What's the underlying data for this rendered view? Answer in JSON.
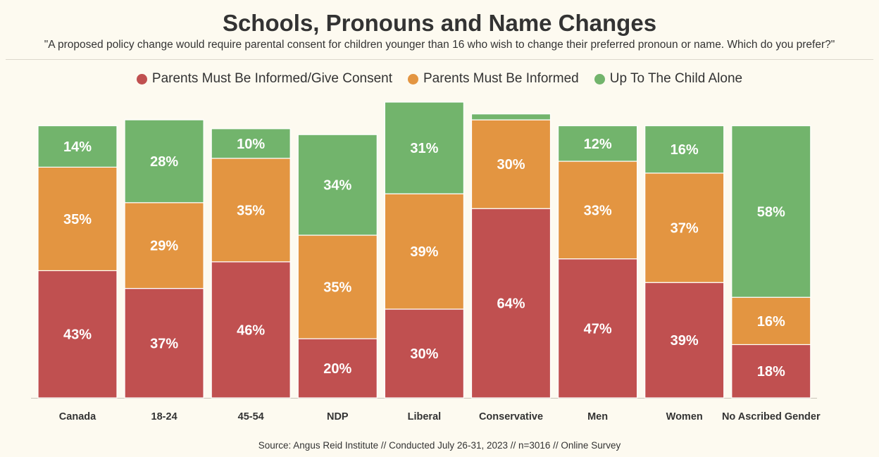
{
  "chart_data": {
    "type": "bar",
    "stacked": true,
    "title": "Schools, Pronouns and Name Changes",
    "subtitle": "\"A proposed policy change would require parental consent for children younger than 16 who wish to change their preferred pronoun or name. Which do you prefer?\"",
    "categories": [
      "Canada",
      "18-24",
      "45-54",
      "NDP",
      "Liberal",
      "Conservative",
      "Men",
      "Women",
      "No Ascribed Gender"
    ],
    "series": [
      {
        "name": "Parents Must Be Informed/Give Consent",
        "color": "#c05050",
        "values": [
          43,
          37,
          46,
          20,
          30,
          64,
          47,
          39,
          18
        ]
      },
      {
        "name": "Parents Must Be Informed",
        "color": "#e39541",
        "values": [
          35,
          29,
          35,
          35,
          39,
          30,
          33,
          37,
          16
        ]
      },
      {
        "name": "Up To The Child Alone",
        "color": "#72b46c",
        "values": [
          14,
          28,
          10,
          34,
          31,
          2,
          12,
          16,
          58
        ]
      }
    ],
    "value_labels": [
      [
        "43%",
        "37%",
        "46%",
        "20%",
        "30%",
        "64%",
        "47%",
        "39%",
        "18%"
      ],
      [
        "35%",
        "29%",
        "35%",
        "35%",
        "39%",
        "30%",
        "33%",
        "37%",
        "16%"
      ],
      [
        "14%",
        "28%",
        "10%",
        "34%",
        "31%",
        "",
        "12%",
        "16%",
        "58%"
      ]
    ],
    "legend_position": "top-center",
    "grid": false,
    "y_axis": false,
    "source": "Source: Angus Reid Institute // Conducted July 26-31, 2023 // n=3016 // Online Survey"
  }
}
